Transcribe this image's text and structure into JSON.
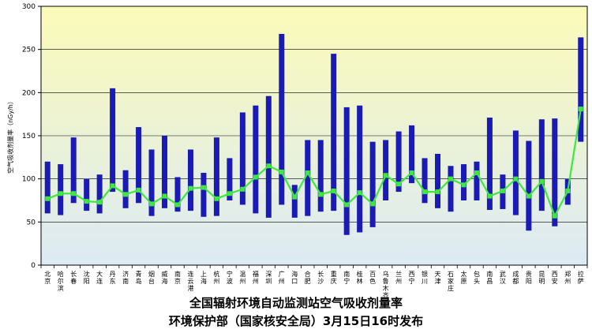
{
  "chart_data": {
    "type": "bar",
    "subtype": "range-bar-with-mean-line",
    "title": "全国辐射环境自动监测站空气吸收剂量率",
    "subtitle": "环境保护部（国家核安全局）3月15日16时发布",
    "ylabel": "空气吸收剂量率（nGy/h）",
    "ylim": [
      0,
      300
    ],
    "yticks": [
      0,
      50,
      100,
      150,
      200,
      250,
      300
    ],
    "grid": true,
    "colors": {
      "bar": "#1a1ab4",
      "line": "#3ee83e",
      "background_top": "#fbfbb8",
      "background_bottom": "#dceaf4"
    },
    "categories": [
      "北京",
      "哈尔滨",
      "长春",
      "沈阳",
      "大连",
      "丹东",
      "济南",
      "青岛",
      "烟台",
      "威海",
      "南京",
      "连云港",
      "上海",
      "杭州",
      "宁波",
      "温州",
      "福州",
      "深圳",
      "广州",
      "海口",
      "合肥",
      "长沙",
      "重庆",
      "南宁",
      "桂林",
      "百色",
      "乌鲁木齐",
      "兰州",
      "西宁",
      "银川",
      "天津",
      "石家庄",
      "太原",
      "包头",
      "南昌",
      "武汉",
      "成都",
      "贵阳",
      "昆明",
      "西安",
      "郑州",
      "拉萨"
    ],
    "series": [
      {
        "values_min": [
          60,
          58,
          72,
          63,
          60,
          85,
          66,
          72,
          57,
          66,
          62,
          63,
          56,
          57,
          75,
          70,
          60,
          55,
          70,
          55,
          57,
          62,
          63,
          35,
          38,
          44,
          75,
          85,
          95,
          72,
          66,
          62,
          75,
          75,
          64,
          65,
          58,
          40,
          63,
          45,
          70,
          143
        ]
      },
      {
        "values_max": [
          120,
          117,
          148,
          100,
          105,
          205,
          110,
          160,
          134,
          150,
          102,
          134,
          107,
          148,
          124,
          177,
          185,
          196,
          268,
          93,
          145,
          145,
          245,
          183,
          185,
          143,
          145,
          155,
          162,
          124,
          129,
          115,
          117,
          120,
          171,
          105,
          156,
          144,
          169,
          170,
          100,
          264
        ]
      },
      {
        "values_mean": [
          77,
          83,
          83,
          74,
          73,
          92,
          82,
          87,
          71,
          80,
          70,
          89,
          90,
          77,
          83,
          88,
          102,
          115,
          108,
          79,
          107,
          82,
          86,
          70,
          84,
          71,
          104,
          94,
          107,
          85,
          85,
          100,
          93,
          107,
          80,
          86,
          100,
          80,
          97,
          57,
          86,
          181
        ]
      }
    ]
  }
}
